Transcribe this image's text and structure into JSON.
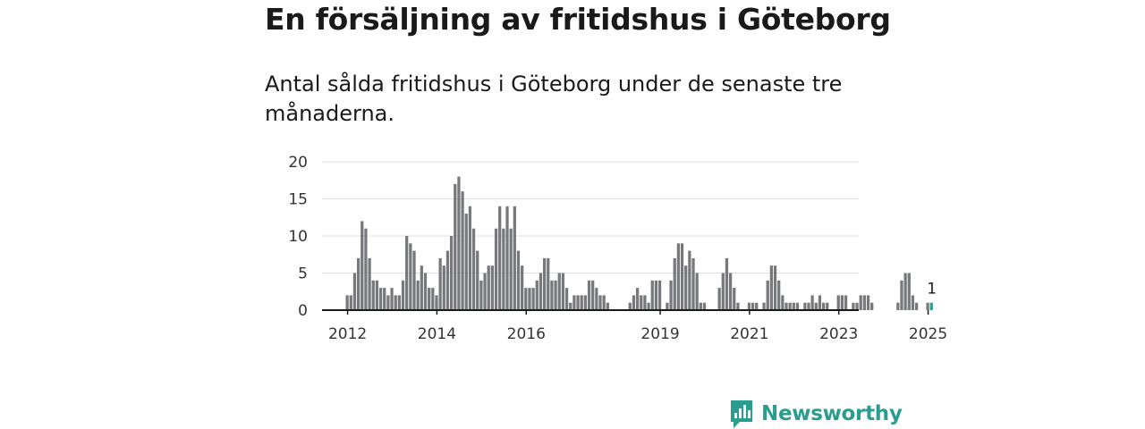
{
  "title": "En försäljning av fritidshus i Göteborg",
  "subtitle": "Antal sålda fritidshus i Göteborg under de senaste tre månaderna.",
  "brand": {
    "name": "Newsworthy",
    "icon": "newsworthy-logo-icon",
    "color": "#2a9d8f"
  },
  "colors": {
    "bar": "#77787b",
    "highlight": "#2a9d8f",
    "grid": "#dddddd",
    "axis": "#1a1a1a"
  },
  "chart_data": {
    "type": "bar",
    "title": "",
    "xlabel": "",
    "ylabel": "",
    "ylim": [
      0,
      20
    ],
    "yticks": [
      0,
      5,
      10,
      15,
      20
    ],
    "x_tick_labels": [
      "2012",
      "2014",
      "2016",
      "2019",
      "2021",
      "2023",
      "2025"
    ],
    "grid": true,
    "highlight_label": "1",
    "series": [
      {
        "x": [
          "2012-01",
          "2012-02",
          "2012-03",
          "2012-04",
          "2012-05",
          "2012-06",
          "2012-07",
          "2012-08",
          "2012-09",
          "2012-10",
          "2012-11",
          "2012-12",
          "2013-01",
          "2013-02",
          "2013-03",
          "2013-04",
          "2013-05",
          "2013-06",
          "2013-07",
          "2013-08",
          "2013-09",
          "2013-10",
          "2013-11",
          "2013-12",
          "2014-01",
          "2014-02",
          "2014-03",
          "2014-04",
          "2014-05",
          "2014-06",
          "2014-07",
          "2014-08",
          "2014-09",
          "2014-10",
          "2014-11",
          "2014-12",
          "2015-01",
          "2015-02",
          "2015-03",
          "2015-04",
          "2015-05",
          "2015-06",
          "2015-07",
          "2015-08",
          "2015-09",
          "2015-10",
          "2015-11",
          "2015-12",
          "2016-01",
          "2016-02",
          "2016-03",
          "2016-04",
          "2016-05",
          "2016-06",
          "2016-07",
          "2016-08",
          "2016-09",
          "2016-10",
          "2016-11",
          "2016-12",
          "2017-01",
          "2017-02",
          "2017-03",
          "2017-04",
          "2017-05",
          "2017-06",
          "2017-07",
          "2017-08",
          "2017-09",
          "2017-10",
          "2017-11",
          "2017-12",
          "2018-01",
          "2018-02",
          "2018-03",
          "2018-04",
          "2018-05",
          "2018-06",
          "2018-07",
          "2018-08",
          "2018-09",
          "2018-10",
          "2018-11",
          "2018-12",
          "2019-01",
          "2019-02",
          "2019-03",
          "2019-04",
          "2019-05",
          "2019-06",
          "2019-07",
          "2019-08",
          "2019-09",
          "2019-10",
          "2019-11",
          "2019-12",
          "2020-01",
          "2020-02",
          "2020-03",
          "2020-04",
          "2020-05",
          "2020-06",
          "2020-07",
          "2020-08",
          "2020-09",
          "2020-10",
          "2020-11",
          "2020-12",
          "2021-01",
          "2021-02",
          "2021-03",
          "2021-04",
          "2021-05",
          "2021-06",
          "2021-07",
          "2021-08",
          "2021-09",
          "2021-10",
          "2021-11",
          "2021-12",
          "2022-01",
          "2022-02",
          "2022-03",
          "2022-04",
          "2022-05",
          "2022-06",
          "2022-07",
          "2022-08",
          "2022-09",
          "2022-10",
          "2022-11",
          "2022-12",
          "2023-01",
          "2023-02",
          "2023-03",
          "2023-04",
          "2023-05",
          "2023-06",
          "2023-07",
          "2023-08",
          "2023-09",
          "2023-10",
          "2023-11",
          "2023-12",
          "2024-01",
          "2024-02",
          "2024-03",
          "2024-04",
          "2024-05",
          "2024-06",
          "2024-07",
          "2024-08",
          "2024-09",
          "2024-10",
          "2024-11",
          "2024-12",
          "2025-01",
          "2025-02"
        ],
        "values": [
          2,
          2,
          5,
          7,
          12,
          11,
          7,
          4,
          4,
          3,
          3,
          2,
          3,
          2,
          2,
          4,
          10,
          9,
          8,
          4,
          6,
          5,
          3,
          3,
          2,
          7,
          6,
          8,
          10,
          17,
          18,
          16,
          13,
          14,
          11,
          8,
          4,
          5,
          6,
          6,
          11,
          14,
          11,
          14,
          11,
          14,
          8,
          6,
          3,
          3,
          3,
          4,
          5,
          7,
          7,
          4,
          4,
          5,
          5,
          3,
          1,
          2,
          2,
          2,
          2,
          4,
          4,
          3,
          2,
          2,
          1,
          0,
          0,
          0,
          0,
          0,
          1,
          2,
          3,
          2,
          2,
          1,
          4,
          4,
          4,
          0,
          1,
          4,
          7,
          9,
          9,
          6,
          8,
          7,
          5,
          1,
          1,
          0,
          0,
          0,
          3,
          5,
          7,
          5,
          3,
          1,
          0,
          0,
          1,
          1,
          1,
          0,
          1,
          4,
          6,
          6,
          4,
          2,
          1,
          1,
          1,
          1,
          0,
          1,
          1,
          2,
          1,
          2,
          1,
          1,
          0,
          0,
          2,
          2,
          2,
          0,
          1,
          1,
          2,
          2,
          2,
          1,
          0,
          0,
          0,
          0,
          0,
          0,
          1,
          4,
          5,
          5,
          2,
          1,
          0,
          0,
          1,
          1
        ]
      }
    ]
  }
}
